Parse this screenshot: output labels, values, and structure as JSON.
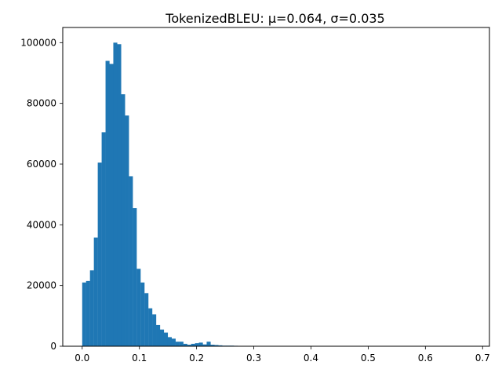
{
  "chart_data": {
    "type": "bar",
    "title": "TokenizedBLEU: μ=0.064, σ=0.035",
    "xlabel": "",
    "ylabel": "",
    "xlim": [
      -0.034,
      0.712
    ],
    "ylim": [
      0,
      105000
    ],
    "bin_width": 0.0068,
    "x_ticks": [
      0.0,
      0.1,
      0.2,
      0.3,
      0.4,
      0.5,
      0.6,
      0.7
    ],
    "x_tick_labels": [
      "0.0",
      "0.1",
      "0.2",
      "0.3",
      "0.4",
      "0.5",
      "0.6",
      "0.7"
    ],
    "y_ticks": [
      0,
      20000,
      40000,
      60000,
      80000,
      100000
    ],
    "y_tick_labels": [
      "0",
      "20000",
      "40000",
      "60000",
      "80000",
      "100000"
    ],
    "grid": false,
    "bar_color": "#1f77b4",
    "bin_starts": [
      0.0,
      0.0068,
      0.0136,
      0.0204,
      0.0272,
      0.034,
      0.0408,
      0.0476,
      0.0544,
      0.0612,
      0.068,
      0.0748,
      0.0816,
      0.0884,
      0.0952,
      0.102,
      0.1088,
      0.1156,
      0.1224,
      0.1292,
      0.136,
      0.1428,
      0.1496,
      0.1564,
      0.1632,
      0.17,
      0.1768,
      0.1836,
      0.1904,
      0.1972,
      0.204,
      0.2108,
      0.2176,
      0.2244,
      0.2312,
      0.238,
      0.2448,
      0.2516,
      0.2584,
      0.2652,
      0.272,
      0.2788
    ],
    "values": [
      21000,
      21500,
      25000,
      35800,
      60500,
      70500,
      94000,
      93000,
      100000,
      99500,
      83000,
      76000,
      56000,
      45500,
      25500,
      21000,
      17500,
      12500,
      10500,
      7000,
      5500,
      4500,
      3000,
      2500,
      1500,
      1500,
      800,
      500,
      800,
      1000,
      1200,
      600,
      1500,
      500,
      400,
      300,
      200,
      200,
      200,
      150,
      100,
      50
    ]
  }
}
